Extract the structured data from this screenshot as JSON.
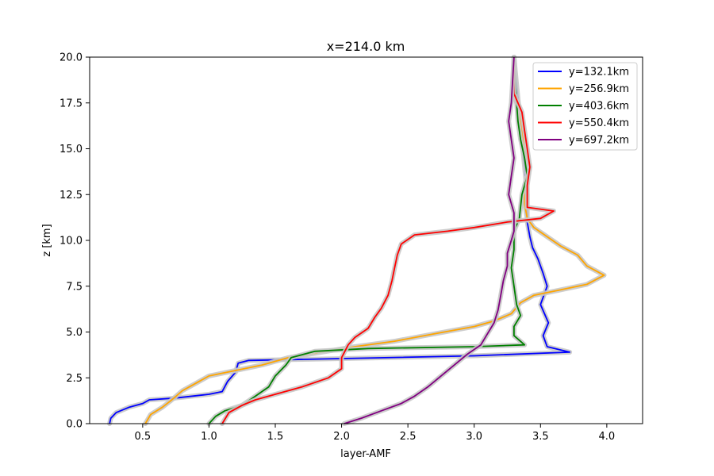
{
  "chart_data": {
    "type": "line",
    "title": "x=214.0 km",
    "xlabel": "layer-AMF",
    "ylabel": "z [km]",
    "xlim": [
      0.1,
      4.27
    ],
    "ylim": [
      0,
      20
    ],
    "xticks": [
      0.5,
      1.0,
      1.5,
      2.0,
      2.5,
      3.0,
      3.5,
      4.0
    ],
    "xtick_labels": [
      "0.5",
      "1.0",
      "1.5",
      "2.0",
      "2.5",
      "3.0",
      "3.5",
      "4.0"
    ],
    "yticks": [
      0,
      2.5,
      5,
      7.5,
      10,
      12.5,
      15,
      17.5,
      20
    ],
    "ytick_labels": [
      "0.0",
      "2.5",
      "5.0",
      "7.5",
      "10.0",
      "12.5",
      "15.0",
      "17.5",
      "20.0"
    ],
    "grid": false,
    "legend_position": "top-right",
    "uncertainty_color": "#c8c8c8",
    "series": [
      {
        "name": "y=132.1km",
        "color": "#0000ff",
        "points": [
          [
            0.25,
            0
          ],
          [
            0.26,
            0.3
          ],
          [
            0.3,
            0.6
          ],
          [
            0.4,
            0.9
          ],
          [
            0.5,
            1.1
          ],
          [
            0.55,
            1.3
          ],
          [
            0.75,
            1.4
          ],
          [
            1.0,
            1.6
          ],
          [
            1.1,
            1.75
          ],
          [
            1.14,
            2.3
          ],
          [
            1.2,
            2.8
          ],
          [
            1.22,
            3.3
          ],
          [
            1.3,
            3.45
          ],
          [
            2.0,
            3.55
          ],
          [
            3.0,
            3.7
          ],
          [
            3.72,
            3.9
          ],
          [
            3.55,
            4.2
          ],
          [
            3.52,
            4.8
          ],
          [
            3.56,
            5.5
          ],
          [
            3.5,
            6.5
          ],
          [
            3.55,
            7.5
          ],
          [
            3.52,
            8.2
          ],
          [
            3.48,
            9
          ],
          [
            3.44,
            9.6
          ],
          [
            3.42,
            10.2
          ],
          [
            3.4,
            11
          ],
          [
            3.4,
            12.5
          ],
          [
            3.38,
            14
          ],
          [
            3.36,
            15.5
          ],
          [
            3.34,
            17
          ],
          [
            3.32,
            18.5
          ],
          [
            3.3,
            20
          ]
        ]
      },
      {
        "name": "y=256.9km",
        "color": "#ffa500",
        "points": [
          [
            0.52,
            0
          ],
          [
            0.56,
            0.5
          ],
          [
            0.65,
            0.9
          ],
          [
            0.72,
            1.3
          ],
          [
            0.8,
            1.8
          ],
          [
            0.9,
            2.2
          ],
          [
            1.0,
            2.6
          ],
          [
            1.2,
            2.9
          ],
          [
            1.4,
            3.2
          ],
          [
            1.6,
            3.6
          ],
          [
            1.85,
            3.9
          ],
          [
            2.1,
            4.2
          ],
          [
            2.4,
            4.5
          ],
          [
            2.7,
            4.9
          ],
          [
            3.0,
            5.3
          ],
          [
            3.15,
            5.6
          ],
          [
            3.28,
            6.0
          ],
          [
            3.35,
            6.6
          ],
          [
            3.45,
            7.0
          ],
          [
            3.65,
            7.3
          ],
          [
            3.85,
            7.6
          ],
          [
            3.98,
            8.1
          ],
          [
            3.85,
            8.6
          ],
          [
            3.78,
            9.2
          ],
          [
            3.65,
            9.7
          ],
          [
            3.55,
            10.2
          ],
          [
            3.45,
            10.7
          ],
          [
            3.4,
            11.2
          ],
          [
            3.38,
            12.0
          ],
          [
            3.38,
            13.0
          ],
          [
            3.42,
            14.0
          ],
          [
            3.38,
            15.0
          ],
          [
            3.36,
            16.0
          ],
          [
            3.34,
            17.0
          ],
          [
            3.3,
            18.0
          ],
          [
            3.3,
            20
          ]
        ]
      },
      {
        "name": "y=403.6km",
        "color": "#008000",
        "points": [
          [
            1.0,
            0
          ],
          [
            1.05,
            0.4
          ],
          [
            1.12,
            0.7
          ],
          [
            1.25,
            1.0
          ],
          [
            1.35,
            1.5
          ],
          [
            1.45,
            2.0
          ],
          [
            1.5,
            2.6
          ],
          [
            1.58,
            3.2
          ],
          [
            1.62,
            3.6
          ],
          [
            1.8,
            3.95
          ],
          [
            2.2,
            4.1
          ],
          [
            3.0,
            4.2
          ],
          [
            3.38,
            4.3
          ],
          [
            3.3,
            4.8
          ],
          [
            3.3,
            5.3
          ],
          [
            3.35,
            5.9
          ],
          [
            3.32,
            6.5
          ],
          [
            3.3,
            7.5
          ],
          [
            3.28,
            8.5
          ],
          [
            3.3,
            9.5
          ],
          [
            3.3,
            10.5
          ],
          [
            3.34,
            11.2
          ],
          [
            3.36,
            12.5
          ],
          [
            3.4,
            13.5
          ],
          [
            3.38,
            14.5
          ],
          [
            3.35,
            15.5
          ],
          [
            3.33,
            16.5
          ],
          [
            3.32,
            17.5
          ],
          [
            3.3,
            20
          ]
        ]
      },
      {
        "name": "y=550.4km",
        "color": "#ff0000",
        "points": [
          [
            1.1,
            0
          ],
          [
            1.15,
            0.6
          ],
          [
            1.25,
            1.0
          ],
          [
            1.35,
            1.3
          ],
          [
            1.5,
            1.6
          ],
          [
            1.7,
            2.0
          ],
          [
            1.9,
            2.5
          ],
          [
            2.0,
            3.0
          ],
          [
            2.0,
            3.6
          ],
          [
            2.05,
            4.3
          ],
          [
            2.1,
            4.7
          ],
          [
            2.2,
            5.2
          ],
          [
            2.25,
            5.8
          ],
          [
            2.3,
            6.3
          ],
          [
            2.35,
            7.0
          ],
          [
            2.38,
            7.8
          ],
          [
            2.4,
            8.5
          ],
          [
            2.42,
            9.2
          ],
          [
            2.45,
            9.8
          ],
          [
            2.55,
            10.3
          ],
          [
            2.8,
            10.5
          ],
          [
            3.0,
            10.7
          ],
          [
            3.25,
            11.0
          ],
          [
            3.5,
            11.2
          ],
          [
            3.6,
            11.6
          ],
          [
            3.4,
            11.8
          ],
          [
            3.4,
            13.0
          ],
          [
            3.42,
            14.0
          ],
          [
            3.4,
            15.0
          ],
          [
            3.38,
            16.0
          ],
          [
            3.36,
            17.0
          ],
          [
            3.3,
            18.0
          ],
          [
            3.3,
            20
          ]
        ]
      },
      {
        "name": "y=697.2km",
        "color": "#800080",
        "points": [
          [
            2.02,
            0
          ],
          [
            2.15,
            0.3
          ],
          [
            2.3,
            0.7
          ],
          [
            2.45,
            1.1
          ],
          [
            2.55,
            1.5
          ],
          [
            2.65,
            2.0
          ],
          [
            2.75,
            2.6
          ],
          [
            2.85,
            3.2
          ],
          [
            2.95,
            3.8
          ],
          [
            3.05,
            4.3
          ],
          [
            3.1,
            4.9
          ],
          [
            3.15,
            5.5
          ],
          [
            3.18,
            6.2
          ],
          [
            3.2,
            7.0
          ],
          [
            3.22,
            7.8
          ],
          [
            3.25,
            8.6
          ],
          [
            3.25,
            9.3
          ],
          [
            3.28,
            10.0
          ],
          [
            3.3,
            10.5
          ],
          [
            3.3,
            11.5
          ],
          [
            3.26,
            12.5
          ],
          [
            3.28,
            13.5
          ],
          [
            3.3,
            14.5
          ],
          [
            3.28,
            15.5
          ],
          [
            3.26,
            16.5
          ],
          [
            3.28,
            17.5
          ],
          [
            3.3,
            20
          ]
        ]
      }
    ]
  }
}
